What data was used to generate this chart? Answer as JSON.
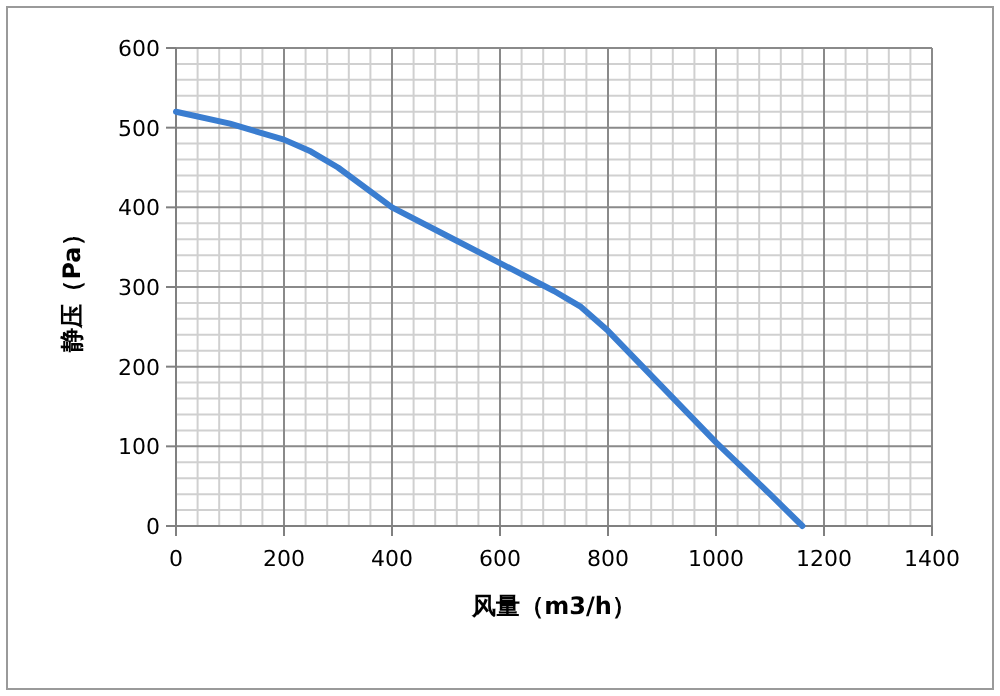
{
  "chart_data": {
    "type": "line",
    "xlabel": "风量（m3/h）",
    "ylabel": "静压（Pa）",
    "x": [
      0,
      100,
      200,
      250,
      300,
      400,
      500,
      600,
      700,
      750,
      800,
      900,
      1000,
      1100,
      1160
    ],
    "series": [
      {
        "color": "#3a7dd0",
        "values": [
          520,
          505,
          485,
          470,
          450,
          400,
          365,
          330,
          295,
          275,
          245,
          175,
          105,
          40,
          0
        ]
      }
    ],
    "xlim": [
      0,
      1400
    ],
    "xticks": [
      0,
      200,
      400,
      600,
      800,
      1000,
      1200,
      1400
    ],
    "ylim": [
      0,
      600
    ],
    "yticks": [
      0,
      100,
      200,
      300,
      400,
      500,
      600
    ],
    "grid": true,
    "marker": "none",
    "line_style": "solid"
  }
}
